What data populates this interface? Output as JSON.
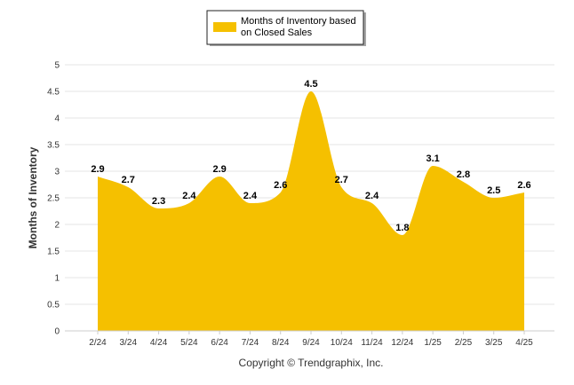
{
  "chart_data": {
    "type": "area",
    "categories": [
      "2/24",
      "3/24",
      "4/24",
      "5/24",
      "6/24",
      "7/24",
      "8/24",
      "9/24",
      "10/24",
      "11/24",
      "12/24",
      "1/25",
      "2/25",
      "3/25",
      "4/25"
    ],
    "series": [
      {
        "name": "Months of Inventory based on Closed Sales",
        "values": [
          2.9,
          2.7,
          2.3,
          2.4,
          2.9,
          2.4,
          2.6,
          4.5,
          2.7,
          2.4,
          1.8,
          3.1,
          2.8,
          2.5,
          2.6
        ]
      }
    ],
    "legend_lines": [
      "Months of Inventory based",
      "on Closed Sales"
    ],
    "ylabel": "Months of Inventory",
    "xlabel": "",
    "ylim": [
      0,
      5
    ],
    "yticks": [
      "0",
      "0.5",
      "1",
      "1.5",
      "2",
      "2.5",
      "3",
      "3.5",
      "4",
      "4.5",
      "5"
    ],
    "grid": true,
    "legend_position": "top-center",
    "color": "#F5C000",
    "credit": "Copyright © Trendgraphix, Inc."
  }
}
